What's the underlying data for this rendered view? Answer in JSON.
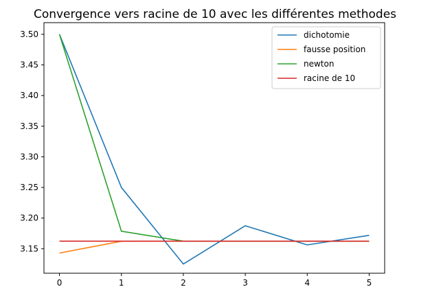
{
  "chart_data": {
    "type": "line",
    "title": "Convergence vers racine de 10 avec les différentes methodes",
    "xlabel": "",
    "ylabel": "",
    "x": [
      0,
      1,
      2,
      3,
      4,
      5
    ],
    "xlim": [
      -0.25,
      5.25
    ],
    "ylim": [
      3.11,
      3.519
    ],
    "xticks": [
      0,
      1,
      2,
      3,
      4,
      5
    ],
    "yticks": [
      3.15,
      3.2,
      3.25,
      3.3,
      3.35,
      3.4,
      3.45,
      3.5
    ],
    "ytick_labels": [
      "3.15",
      "3.20",
      "3.25",
      "3.30",
      "3.35",
      "3.40",
      "3.45",
      "3.50"
    ],
    "grid": false,
    "legend_position": "top-right",
    "series": [
      {
        "name": "dichotomie",
        "color": "#1f77b4",
        "values": [
          3.5,
          3.25,
          3.125,
          3.1875,
          3.15625,
          3.171875
        ]
      },
      {
        "name": "fausse position",
        "color": "#ff7f0e",
        "values": [
          3.1429,
          3.1622,
          3.1623,
          3.1623,
          3.1623,
          3.1623
        ]
      },
      {
        "name": "newton",
        "color": "#2ca02c",
        "values": [
          3.5,
          3.1786,
          3.1623,
          3.1623,
          3.1623,
          3.1623
        ]
      },
      {
        "name": "racine de 10",
        "color": "#d62728",
        "values": [
          3.1623,
          3.1623,
          3.1623,
          3.1623,
          3.1623,
          3.1623
        ]
      }
    ]
  }
}
